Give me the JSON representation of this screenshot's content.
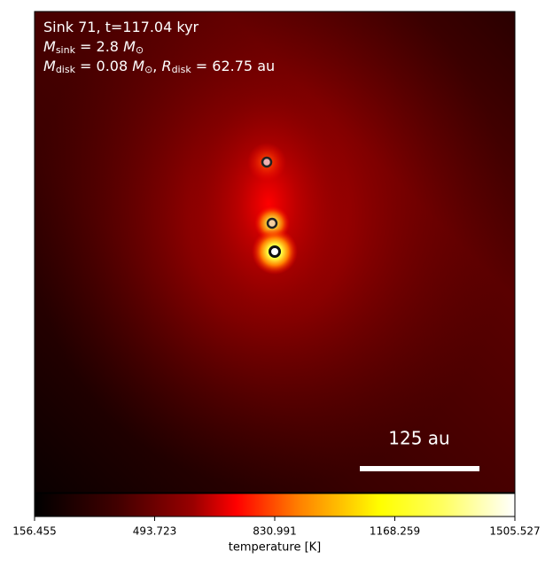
{
  "chart_data": {
    "type": "heatmap",
    "title_lines": [
      [
        "Sink 71, t=117.04 kyr"
      ],
      [
        "M",
        "sink",
        " = 2.8 ",
        "M",
        "⊙"
      ],
      [
        "M",
        "disk",
        " = 0.08 ",
        "M",
        "⊙",
        ", ",
        "R",
        "disk",
        " = 62.75 au"
      ]
    ],
    "scalebar_label": "125 au",
    "colorbar": {
      "label": "temperature [K]",
      "lim": [
        156.455,
        1505.527
      ],
      "ticks": [
        156.455,
        493.723,
        830.991,
        1168.259,
        1505.527
      ]
    }
  }
}
